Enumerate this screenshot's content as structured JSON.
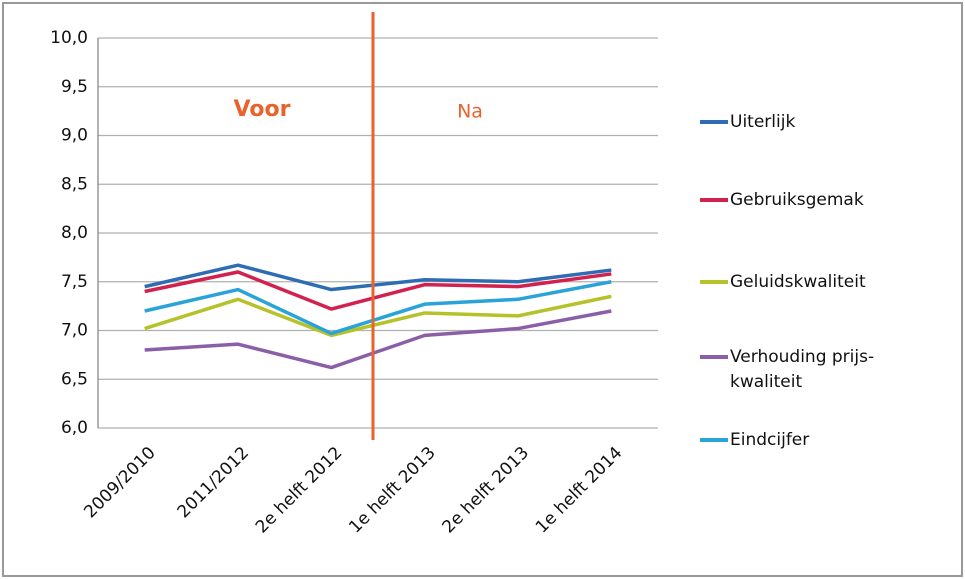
{
  "chart_data": {
    "type": "line",
    "categories": [
      "2009/2010",
      "2011/2012",
      "2e helft 2012",
      "1e helft 2013",
      "2e helft 2013",
      "1e helft 2014"
    ],
    "series": [
      {
        "name": "Uiterlijk",
        "color": "#2e6db4",
        "values": [
          7.45,
          7.67,
          7.42,
          7.52,
          7.5,
          7.62
        ]
      },
      {
        "name": "Gebruiksgemak",
        "color": "#d2204f",
        "values": [
          7.4,
          7.6,
          7.22,
          7.47,
          7.45,
          7.58
        ]
      },
      {
        "name": "Geluidskwaliteit",
        "color": "#b5c22a",
        "values": [
          7.02,
          7.32,
          6.95,
          7.18,
          7.15,
          7.35
        ]
      },
      {
        "name": "Verhouding prijs-kwaliteit",
        "color": "#8b5fa8",
        "values": [
          6.8,
          6.86,
          6.62,
          6.95,
          7.02,
          7.2
        ]
      },
      {
        "name": "Eindcijfer",
        "color": "#2aa3d8",
        "values": [
          7.2,
          7.42,
          6.97,
          7.27,
          7.32,
          7.5
        ]
      }
    ],
    "ylim": [
      6,
      10
    ],
    "yticks": [
      {
        "value": 6,
        "label": "6,0"
      },
      {
        "value": 6.5,
        "label": "6,5"
      },
      {
        "value": 7,
        "label": "7,0"
      },
      {
        "value": 7.5,
        "label": "7,5"
      },
      {
        "value": 8,
        "label": "8,0"
      },
      {
        "value": 8.5,
        "label": "8,5"
      },
      {
        "value": 9,
        "label": "9,0"
      },
      {
        "value": 9.5,
        "label": "9,5"
      },
      {
        "value": 10,
        "label": "10,0"
      }
    ],
    "grid": true,
    "annotations": [
      "Voor",
      "Na"
    ],
    "divider_color": "#e8622a"
  }
}
